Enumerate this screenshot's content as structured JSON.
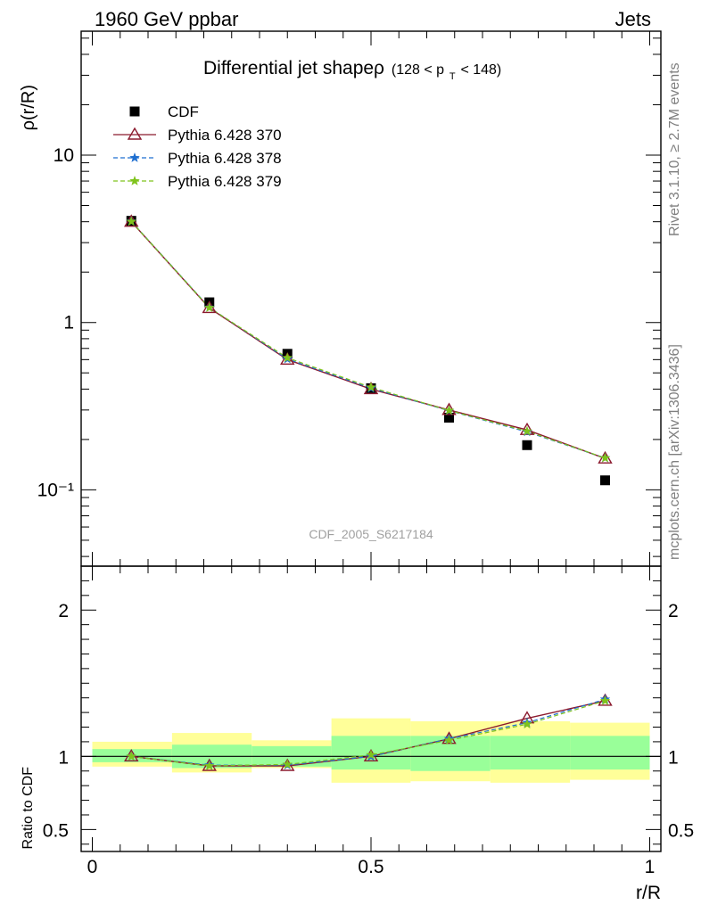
{
  "header": {
    "left": "1960 GeV ppbar",
    "right": "Jets"
  },
  "side_labels": {
    "top": "Rivet 3.1.10, ≥ 2.7M events",
    "bottom": "mcplots.cern.ch [arXiv:1306.3436]"
  },
  "watermark": "CDF_2005_S6217184",
  "chart_data": [
    {
      "type": "line",
      "title": "Differential jet shapeρ",
      "subtitle": "(128 < p_T < 148)",
      "title_main": "Differential jet shapeρ",
      "title_paren_open": "(128 < p",
      "title_sub": "T",
      "title_paren_close": " < 148)",
      "ylabel": "ρ(r/R)",
      "yscale": "log",
      "ylim": [
        0.035,
        55
      ],
      "xlim": [
        -0.02,
        1.02
      ],
      "x": [
        0.07,
        0.21,
        0.35,
        0.5,
        0.64,
        0.78,
        0.92
      ],
      "y_tick_labels": [
        "10⁻¹",
        "1",
        "10"
      ],
      "legend_position": "top-left",
      "series": [
        {
          "name": "CDF",
          "marker": "square",
          "color": "#000000",
          "values": [
            4.05,
            1.32,
            0.65,
            0.405,
            0.27,
            0.185,
            0.114
          ]
        },
        {
          "name": "Pythia 6.428 370",
          "marker": "triangle",
          "color": "#8b1a2e",
          "values": [
            4.0,
            1.22,
            0.6,
            0.4,
            0.3,
            0.228,
            0.154
          ]
        },
        {
          "name": "Pythia 6.428 378",
          "marker": "star",
          "color": "#1f6fd0",
          "values": [
            4.02,
            1.23,
            0.605,
            0.405,
            0.297,
            0.222,
            0.155
          ]
        },
        {
          "name": "Pythia 6.428 379",
          "marker": "star",
          "color": "#7fc31c",
          "values": [
            4.01,
            1.225,
            0.615,
            0.41,
            0.298,
            0.224,
            0.155
          ]
        }
      ]
    },
    {
      "type": "line",
      "ylabel": "Ratio to CDF",
      "xlabel": "r/R",
      "ylim": [
        0.35,
        2.3
      ],
      "xlim": [
        -0.02,
        1.02
      ],
      "x_ticks": [
        0,
        0.5,
        1
      ],
      "x_tick_labels": [
        "0",
        "0.5",
        "1"
      ],
      "y_ticks": [
        0.5,
        1,
        2
      ],
      "y_tick_labels": [
        "0.5",
        "1",
        "2"
      ],
      "reference_line": 1,
      "bins": [
        [
          -0.0,
          0.143
        ],
        [
          0.143,
          0.286
        ],
        [
          0.286,
          0.429
        ],
        [
          0.429,
          0.571
        ],
        [
          0.571,
          0.714
        ],
        [
          0.714,
          0.857
        ],
        [
          0.857,
          1.0
        ]
      ],
      "band_inner": [
        [
          0.96,
          1.05
        ],
        [
          0.92,
          1.08
        ],
        [
          0.93,
          1.07
        ],
        [
          0.91,
          1.14
        ],
        [
          0.9,
          1.14
        ],
        [
          0.91,
          1.14
        ],
        [
          0.91,
          1.14
        ]
      ],
      "band_outer": [
        [
          0.93,
          1.1
        ],
        [
          0.89,
          1.16
        ],
        [
          0.92,
          1.11
        ],
        [
          0.82,
          1.26
        ],
        [
          0.83,
          1.24
        ],
        [
          0.82,
          1.24
        ],
        [
          0.84,
          1.23
        ]
      ],
      "x": [
        0.07,
        0.21,
        0.35,
        0.5,
        0.64,
        0.78,
        0.92
      ],
      "series": [
        {
          "name": "Pythia 6.428 370",
          "marker": "triangle",
          "color": "#8b1a2e",
          "values": [
            1.0,
            0.935,
            0.935,
            1.0,
            1.12,
            1.26,
            1.38
          ]
        },
        {
          "name": "Pythia 6.428 378",
          "marker": "star",
          "color": "#1f6fd0",
          "values": [
            1.0,
            0.94,
            0.94,
            1.0,
            1.12,
            1.23,
            1.39
          ]
        },
        {
          "name": "Pythia 6.428 379",
          "marker": "star",
          "color": "#7fc31c",
          "values": [
            1.0,
            0.935,
            0.945,
            1.01,
            1.11,
            1.22,
            1.38
          ]
        }
      ]
    }
  ]
}
